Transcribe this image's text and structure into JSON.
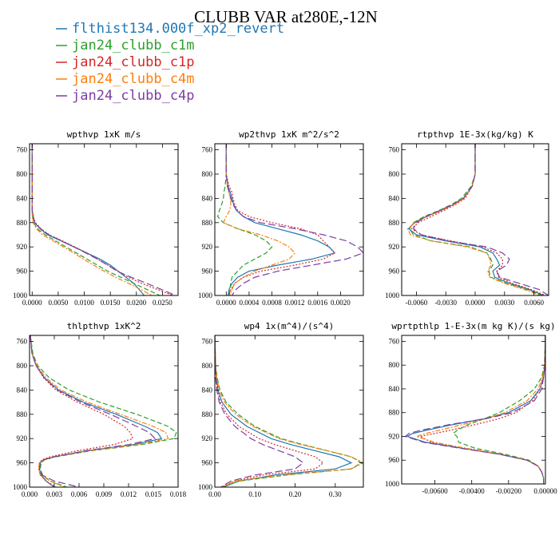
{
  "figure": {
    "title": "CLUBB VAR at280E,-12N"
  },
  "legend": [
    {
      "label": "flthist134.000f_xp2_revert",
      "color": "#1f77b4",
      "dash": "solid"
    },
    {
      "label": "jan24_clubb_c1m",
      "color": "#2ca02c",
      "dash": "dashed"
    },
    {
      "label": "jan24_clubb_c1p",
      "color": "#d62728",
      "dash": "dotted"
    },
    {
      "label": "jan24_clubb_c4m",
      "color": "#ff7f0e",
      "dash": "dashdot"
    },
    {
      "label": "jan24_clubb_c4p",
      "color": "#7b3fa0",
      "dash": "longdash"
    }
  ],
  "chart_data": [
    {
      "type": "line",
      "title": "wpthvp  1xK m/s",
      "xlim": [
        -0.0005,
        0.028
      ],
      "ylim": [
        1000,
        750
      ],
      "yticks": [
        760,
        800,
        840,
        880,
        920,
        960,
        1000
      ],
      "xticks": [
        0.0,
        0.005,
        0.01,
        0.015,
        0.02,
        0.025
      ],
      "xticklabels": [
        "0.0000",
        "0.0050",
        "0.0100",
        "0.0150",
        "0.0200",
        "0.0250"
      ],
      "y": [
        750,
        780,
        800,
        820,
        840,
        860,
        870,
        880,
        890,
        900,
        910,
        920,
        930,
        940,
        950,
        960,
        970,
        980,
        990,
        1000
      ],
      "series": [
        {
          "values": [
            0,
            0,
            0,
            0,
            0,
            0,
            0.0002,
            0.0005,
            0.0015,
            0.003,
            0.0055,
            0.008,
            0.0105,
            0.013,
            0.015,
            0.0165,
            0.018,
            0.0195,
            0.0205,
            0.0215
          ]
        },
        {
          "values": [
            0,
            0,
            0,
            0,
            0,
            0,
            0.0001,
            0.0003,
            0.001,
            0.0025,
            0.0045,
            0.0065,
            0.0085,
            0.0105,
            0.0125,
            0.0145,
            0.017,
            0.0195,
            0.022,
            0.0245
          ]
        },
        {
          "values": [
            0,
            0,
            0,
            0,
            0,
            0,
            0.0002,
            0.0006,
            0.0017,
            0.0033,
            0.0058,
            0.0082,
            0.0105,
            0.0125,
            0.0145,
            0.0165,
            0.0185,
            0.021,
            0.024,
            0.027
          ]
        },
        {
          "values": [
            0,
            0,
            0,
            0,
            0,
            0,
            0,
            0.0002,
            0.0008,
            0.002,
            0.004,
            0.006,
            0.008,
            0.0098,
            0.0118,
            0.0138,
            0.016,
            0.0185,
            0.0208,
            0.023
          ]
        },
        {
          "values": [
            0,
            0,
            0,
            0,
            0,
            0,
            0.0002,
            0.0005,
            0.0016,
            0.0032,
            0.0056,
            0.008,
            0.0103,
            0.0125,
            0.0145,
            0.0163,
            0.019,
            0.022,
            0.0248,
            0.0275
          ]
        }
      ]
    },
    {
      "type": "line",
      "title": "wp2thvp  1xK m^2/s^2",
      "xlim": [
        -0.0002,
        0.0024
      ],
      "ylim": [
        1000,
        750
      ],
      "yticks": [
        760,
        800,
        840,
        880,
        920,
        960,
        1000
      ],
      "xticks": [
        0.0,
        0.0004,
        0.0008,
        0.0012,
        0.0016,
        0.002
      ],
      "xticklabels": [
        "0.0000",
        "0.0004",
        "0.0008",
        "0.0012",
        "0.0016",
        "0.0020"
      ],
      "y": [
        750,
        800,
        820,
        830,
        840,
        850,
        860,
        870,
        880,
        890,
        900,
        910,
        920,
        930,
        940,
        950,
        960,
        970,
        980,
        990,
        1000
      ],
      "series": [
        {
          "values": [
            0,
            0,
            3e-05,
            7e-05,
            0.0001,
            0.00013,
            0.00018,
            0.0003,
            0.0005,
            0.0009,
            0.0013,
            0.0016,
            0.0018,
            0.0019,
            0.0015,
            0.0009,
            0.0004,
            0.0002,
            0.0001,
            5e-05,
            3e-05
          ]
        },
        {
          "values": [
            0,
            0,
            -2e-05,
            -4e-05,
            -5e-05,
            -8e-05,
            -0.00012,
            -0.00015,
            -5e-05,
            0.0002,
            0.0005,
            0.0007,
            0.0008,
            0.0007,
            0.0005,
            0.0003,
            0.0002,
            0.0001,
            8e-05,
            6e-05,
            5e-05
          ]
        },
        {
          "values": [
            0,
            0,
            5e-05,
            0.0001,
            0.00012,
            0.00015,
            0.0002,
            0.0004,
            0.0008,
            0.0013,
            0.0016,
            0.0017,
            0.0018,
            0.0019,
            0.0017,
            0.0012,
            0.0006,
            0.0003,
            0.00015,
            8e-05,
            5e-05
          ]
        },
        {
          "values": [
            0,
            0,
            2e-05,
            5e-05,
            7e-05,
            8e-05,
            6e-05,
            0.0,
            -5e-05,
            0.0002,
            0.0006,
            0.0009,
            0.0011,
            0.0012,
            0.0011,
            0.0008,
            0.0005,
            0.0003,
            0.00015,
            0.0001,
            6e-05
          ]
        },
        {
          "values": [
            0,
            0,
            2e-05,
            5e-05,
            8e-05,
            0.00012,
            0.00018,
            0.0003,
            0.0006,
            0.0012,
            0.0017,
            0.0021,
            0.0023,
            0.0024,
            0.0021,
            0.0015,
            0.0009,
            0.0005,
            0.0003,
            0.00017,
            0.0001
          ]
        }
      ]
    },
    {
      "type": "line",
      "title": "rtpthvp  1E-3x(kg/kg) K",
      "xlim": [
        -0.0075,
        0.0075
      ],
      "ylim": [
        1000,
        750
      ],
      "yticks": [
        760,
        800,
        840,
        880,
        920,
        960,
        1000
      ],
      "xticks": [
        -0.006,
        -0.003,
        0.0,
        0.003,
        0.006
      ],
      "xticklabels": [
        "-0.0060",
        "-0.0030",
        "0.0000",
        "0.0030",
        "0.0060"
      ],
      "y": [
        750,
        800,
        820,
        840,
        850,
        860,
        870,
        880,
        890,
        900,
        910,
        920,
        930,
        940,
        950,
        960,
        970,
        980,
        990,
        1000
      ],
      "series": [
        {
          "values": [
            0,
            0,
            -0.0003,
            -0.0012,
            -0.0022,
            -0.0035,
            -0.005,
            -0.0062,
            -0.0068,
            -0.006,
            -0.003,
            0.0005,
            0.0018,
            0.0022,
            0.0025,
            0.0018,
            0.002,
            0.0035,
            0.0055,
            0.007
          ]
        },
        {
          "values": [
            0,
            0,
            -0.0004,
            -0.0014,
            -0.0024,
            -0.0037,
            -0.0052,
            -0.0063,
            -0.0067,
            -0.0063,
            -0.0045,
            -0.0005,
            0.0012,
            0.0016,
            0.0018,
            0.0014,
            0.0016,
            0.0032,
            0.0053,
            0.0068
          ]
        },
        {
          "values": [
            0,
            0,
            -0.0003,
            -0.001,
            -0.002,
            -0.0032,
            -0.0045,
            -0.0058,
            -0.0065,
            -0.0055,
            -0.0025,
            0.0008,
            0.0022,
            0.0028,
            0.0028,
            0.0022,
            0.0024,
            0.0038,
            0.0057,
            0.0072
          ]
        },
        {
          "values": [
            0,
            0,
            -0.0003,
            -0.0011,
            -0.0021,
            -0.0034,
            -0.0049,
            -0.0061,
            -0.0069,
            -0.0066,
            -0.0045,
            -0.0008,
            0.0012,
            0.0015,
            0.0016,
            0.0013,
            0.0015,
            0.003,
            0.005,
            0.0066
          ]
        },
        {
          "values": [
            0,
            0,
            -0.0003,
            -0.0012,
            -0.0023,
            -0.0036,
            -0.005,
            -0.006,
            -0.0063,
            -0.0055,
            -0.0028,
            0.0012,
            0.0028,
            0.0035,
            0.0032,
            0.0022,
            0.0025,
            0.0045,
            0.0065,
            0.0075
          ]
        }
      ]
    },
    {
      "type": "line",
      "title": "thlpthvp  1xK^2",
      "xlim": [
        0.0,
        0.018
      ],
      "ylim": [
        1000,
        750
      ],
      "yticks": [
        760,
        800,
        840,
        880,
        920,
        960,
        1000
      ],
      "xticks": [
        0.0,
        0.003,
        0.006,
        0.009,
        0.012,
        0.015,
        0.018
      ],
      "xticklabels": [
        "0.000",
        "0.003",
        "0.006",
        "0.009",
        "0.012",
        "0.015",
        "0.018"
      ],
      "y": [
        750,
        780,
        800,
        820,
        840,
        860,
        880,
        900,
        910,
        920,
        930,
        940,
        950,
        955,
        960,
        970,
        980,
        990,
        1000
      ],
      "series": [
        {
          "values": [
            0.0001,
            0.0003,
            0.0008,
            0.0018,
            0.0035,
            0.0065,
            0.0105,
            0.014,
            0.0155,
            0.016,
            0.0125,
            0.007,
            0.003,
            0.0017,
            0.0013,
            0.0012,
            0.0014,
            0.002,
            0.003
          ]
        },
        {
          "values": [
            0.0001,
            0.0004,
            0.001,
            0.0024,
            0.0048,
            0.0085,
            0.013,
            0.0168,
            0.0178,
            0.0175,
            0.0135,
            0.0075,
            0.0032,
            0.0018,
            0.0014,
            0.0013,
            0.0016,
            0.0025,
            0.0045
          ]
        },
        {
          "values": [
            0.0001,
            0.0003,
            0.0008,
            0.0017,
            0.0032,
            0.0058,
            0.009,
            0.0115,
            0.0122,
            0.0125,
            0.0102,
            0.0058,
            0.0025,
            0.0015,
            0.0012,
            0.0011,
            0.0013,
            0.002,
            0.0032
          ]
        },
        {
          "values": [
            0.0001,
            0.0003,
            0.0009,
            0.002,
            0.0038,
            0.007,
            0.011,
            0.015,
            0.0165,
            0.0168,
            0.013,
            0.0072,
            0.003,
            0.0016,
            0.0012,
            0.0011,
            0.0013,
            0.0025,
            0.0042
          ]
        },
        {
          "values": [
            0.0001,
            0.0003,
            0.0008,
            0.0018,
            0.0034,
            0.0062,
            0.0098,
            0.013,
            0.0145,
            0.0152,
            0.012,
            0.0068,
            0.003,
            0.0017,
            0.0013,
            0.0012,
            0.0015,
            0.003,
            0.006
          ]
        }
      ]
    },
    {
      "type": "line",
      "title": "wp4  1x(m^4)/(s^4)",
      "xlim": [
        0.0,
        0.37
      ],
      "ylim": [
        1000,
        750
      ],
      "yticks": [
        760,
        800,
        840,
        880,
        920,
        960,
        1000
      ],
      "xticks": [
        0.0,
        0.1,
        0.2,
        0.3
      ],
      "xticklabels": [
        "0.00",
        "0.10",
        "0.20",
        "0.30"
      ],
      "y": [
        750,
        800,
        820,
        840,
        860,
        880,
        900,
        920,
        930,
        940,
        950,
        960,
        970,
        980,
        990,
        1000
      ],
      "series": [
        {
          "values": [
            0,
            0.002,
            0.004,
            0.008,
            0.018,
            0.04,
            0.08,
            0.14,
            0.19,
            0.25,
            0.31,
            0.34,
            0.3,
            0.15,
            0.06,
            0.02
          ]
        },
        {
          "values": [
            0,
            0.002,
            0.006,
            0.013,
            0.028,
            0.058,
            0.1,
            0.165,
            0.22,
            0.28,
            0.34,
            0.365,
            0.34,
            0.18,
            0.06,
            0.02
          ]
        },
        {
          "values": [
            0,
            0.001,
            0.003,
            0.006,
            0.014,
            0.03,
            0.06,
            0.11,
            0.15,
            0.2,
            0.25,
            0.27,
            0.25,
            0.12,
            0.05,
            0.02
          ]
        },
        {
          "values": [
            0,
            0.002,
            0.005,
            0.011,
            0.024,
            0.052,
            0.095,
            0.16,
            0.215,
            0.28,
            0.34,
            0.37,
            0.34,
            0.17,
            0.05,
            0.015
          ]
        },
        {
          "values": [
            0,
            0.001,
            0.002,
            0.005,
            0.011,
            0.025,
            0.05,
            0.09,
            0.12,
            0.16,
            0.2,
            0.22,
            0.2,
            0.1,
            0.04,
            0.015
          ]
        }
      ]
    },
    {
      "type": "line",
      "title": "wprtpthlp  1-E-3x(m kg K)/(s kg)",
      "xlim": [
        -0.0078,
        0.0
      ],
      "ylim": [
        1000,
        750
      ],
      "yticks": [
        760,
        800,
        840,
        880,
        920,
        960,
        1000
      ],
      "xticks": [
        -0.006,
        -0.004,
        -0.002,
        0.0
      ],
      "xticklabels": [
        "-0.00600",
        "-0.00400",
        "-0.00200",
        "0.00000"
      ],
      "y": [
        750,
        800,
        820,
        840,
        860,
        880,
        890,
        900,
        910,
        915,
        920,
        930,
        940,
        950,
        960,
        970,
        980,
        990,
        1000
      ],
      "series": [
        {
          "values": [
            0,
            -3e-05,
            -0.0001,
            -0.0003,
            -0.0008,
            -0.002,
            -0.0033,
            -0.005,
            -0.0065,
            -0.0072,
            -0.0075,
            -0.0065,
            -0.0045,
            -0.0025,
            -0.001,
            -0.0004,
            -0.0002,
            -0.0001,
            -0.0001
          ]
        },
        {
          "values": [
            0,
            -5e-05,
            -0.0002,
            -0.0006,
            -0.0014,
            -0.0025,
            -0.0033,
            -0.0042,
            -0.0048,
            -0.005,
            -0.0048,
            -0.0047,
            -0.0038,
            -0.0022,
            -0.0009,
            -0.0004,
            -0.0002,
            -0.0001,
            -0.0001
          ]
        },
        {
          "values": [
            0,
            -3e-05,
            -0.0001,
            -0.0003,
            -0.0007,
            -0.0016,
            -0.0025,
            -0.0038,
            -0.0052,
            -0.006,
            -0.0068,
            -0.0062,
            -0.0043,
            -0.0024,
            -0.001,
            -0.0004,
            -0.0002,
            -0.0001,
            -0.0001
          ]
        },
        {
          "values": [
            0,
            -4e-05,
            -0.00015,
            -0.0004,
            -0.001,
            -0.0022,
            -0.0032,
            -0.0045,
            -0.0058,
            -0.0065,
            -0.007,
            -0.006,
            -0.0043,
            -0.0024,
            -0.001,
            -0.0004,
            -0.0002,
            -0.0001,
            -0.0001
          ]
        },
        {
          "values": [
            0,
            -3e-05,
            -0.0001,
            -0.0002,
            -0.0006,
            -0.0018,
            -0.0032,
            -0.0052,
            -0.0068,
            -0.0074,
            -0.0076,
            -0.0066,
            -0.0046,
            -0.0025,
            -0.001,
            -0.0004,
            -0.0002,
            -0.0001,
            -0.0001
          ]
        }
      ]
    }
  ]
}
